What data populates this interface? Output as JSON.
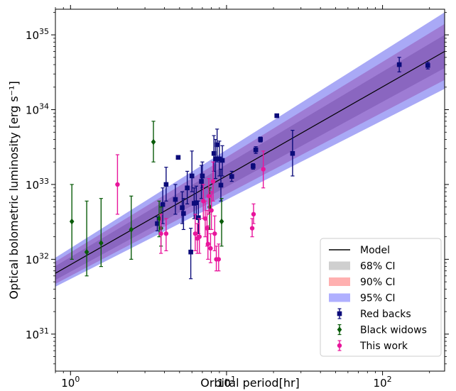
{
  "chart_data": {
    "type": "scatter",
    "title": "",
    "xlabel": "Orbital period[hr]",
    "ylabel": "Optical bolometric luminosity [erg s⁻¹]",
    "xscale": "log",
    "yscale": "log",
    "xlim": [
      0.8,
      250
    ],
    "ylim": [
      3.2e+30,
      2.2e+35
    ],
    "xticks": [
      {
        "value": 1,
        "base": "10",
        "exp": "0"
      },
      {
        "value": 10,
        "base": "10",
        "exp": "1"
      },
      {
        "value": 100,
        "base": "10",
        "exp": "2"
      }
    ],
    "yticks": [
      {
        "value": 1e+31,
        "base": "10",
        "exp": "31"
      },
      {
        "value": 1e+32,
        "base": "10",
        "exp": "32"
      },
      {
        "value": 1e+33,
        "base": "10",
        "exp": "33"
      },
      {
        "value": 1e+34,
        "base": "10",
        "exp": "34"
      },
      {
        "value": 1e+35,
        "base": "10",
        "exp": "35"
      }
    ],
    "model": {
      "name": "Model",
      "color": "#000000",
      "points": [
        [
          0.8,
          6.5e+31
        ],
        [
          250,
          6e+34
        ]
      ]
    },
    "confidence_bands": [
      {
        "name": "95% CI",
        "legend_color": "#b0b0ff",
        "color": "#a9a9f6",
        "lower": [
          [
            0.8,
            4.3e+31
          ],
          [
            250,
            1.9e+34
          ]
        ],
        "upper": [
          [
            0.8,
            1.05e+32
          ],
          [
            250,
            2e+35
          ]
        ]
      },
      {
        "name": "90% CI",
        "legend_color": "#ffb0b0",
        "color": "#9e7cd4",
        "lower": [
          [
            0.8,
            4.7e+31
          ],
          [
            250,
            2.5e+34
          ]
        ],
        "upper": [
          [
            0.8,
            9.3e+31
          ],
          [
            250,
            1.4e+35
          ]
        ]
      },
      {
        "name": "68% CI",
        "legend_color": "#cfcfcf",
        "color": "#8a66c0",
        "lower": [
          [
            0.8,
            5.3e+31
          ],
          [
            250,
            3.6e+34
          ]
        ],
        "upper": [
          [
            0.8,
            8.1e+31
          ],
          [
            250,
            1e+35
          ]
        ]
      }
    ],
    "series": [
      {
        "name": "Red backs",
        "marker": "square",
        "color": "#0b0b7a",
        "points": [
          [
            3.6,
            3e+32,
            2.4e+32,
            3.7e+32
          ],
          [
            3.9,
            5.4e+32,
            3e+32,
            9e+32
          ],
          [
            4.1,
            1e+33,
            6e+32,
            1.7e+33
          ],
          [
            4.7,
            6.3e+32,
            4e+32,
            1e+33
          ],
          [
            4.9,
            2.3e+33,
            2.2e+33,
            2.4e+33
          ],
          [
            5.2,
            4.9e+32,
            3e+32,
            8e+32
          ],
          [
            5.3,
            4.1e+32,
            2.5e+32,
            6.5e+32
          ],
          [
            5.6,
            9e+32,
            5.5e+32,
            1.5e+33
          ],
          [
            5.9,
            1.25e+32,
            5.5e+31,
            2.6e+32
          ],
          [
            6.0,
            1.3e+33,
            8e+32,
            2.8e+33
          ],
          [
            6.2,
            5.6e+32,
            3.5e+32,
            9e+32
          ],
          [
            6.4,
            5.7e+32,
            3.5e+32,
            9.5e+32
          ],
          [
            6.6,
            3.6e+32,
            2.2e+32,
            6e+32
          ],
          [
            6.9,
            1.1e+33,
            6.5e+32,
            1.8e+33
          ],
          [
            7.0,
            1.3e+33,
            9e+32,
            2e+33
          ],
          [
            8.3,
            2.6e+33,
            1.5e+33,
            4.5e+33
          ],
          [
            8.5,
            2.2e+33,
            1.2e+33,
            4e+33
          ],
          [
            8.7,
            3.4e+33,
            2e+33,
            5.5e+33
          ],
          [
            9.0,
            2.2e+33,
            1.3e+33,
            3.8e+33
          ],
          [
            9.2,
            9.8e+32,
            6e+32,
            1.6e+33
          ],
          [
            9.4,
            2.1e+33,
            1.3e+33,
            3.3e+33
          ],
          [
            10.8,
            1.28e+33,
            1.1e+33,
            1.5e+33
          ],
          [
            14.8,
            1.75e+33,
            1.6e+33,
            1.9e+33
          ],
          [
            15.4,
            2.9e+33,
            2.6e+33,
            3.2e+33
          ],
          [
            16.5,
            4e+33,
            3.7e+33,
            4.3e+33
          ],
          [
            21.0,
            8.3e+33,
            7.9e+33,
            8.7e+33
          ],
          [
            26.5,
            2.6e+33,
            1.3e+33,
            5.3e+33
          ],
          [
            128,
            4e+34,
            3.2e+34,
            5e+34
          ],
          [
            195,
            3.9e+34,
            3.5e+34,
            4.3e+34
          ]
        ]
      },
      {
        "name": "Black widows",
        "marker": "diamond",
        "color": "#0a5c0a",
        "points": [
          [
            1.02,
            3.2e+32,
            1e+32,
            1e+33
          ],
          [
            1.27,
            1.25e+32,
            6e+31,
            6e+32
          ],
          [
            1.57,
            1.65e+32,
            8e+31,
            6.5e+32
          ],
          [
            2.45,
            2.5e+32,
            1e+32,
            7e+32
          ],
          [
            3.4,
            3.7e+33,
            2e+33,
            7e+33
          ],
          [
            3.7,
            3.5e+32,
            2e+32,
            6e+32
          ],
          [
            3.8,
            2.6e+32,
            1.5e+32,
            5e+32
          ],
          [
            7.8,
            5e+32,
            2.5e+32,
            9e+32
          ],
          [
            9.3,
            3.2e+32,
            1.5e+32,
            6.5e+32
          ]
        ]
      },
      {
        "name": "This work",
        "marker": "circle",
        "color": "#e8159b",
        "points": [
          [
            2.0,
            1e+33,
            4e+32,
            2.5e+33
          ],
          [
            3.8,
            2.2e+32,
            1.2e+32,
            4e+32
          ],
          [
            4.1,
            2.2e+32,
            1.3e+32,
            3.5e+32
          ],
          [
            6.3,
            2.2e+32,
            1.3e+32,
            4e+32
          ],
          [
            6.5,
            1.9e+32,
            1.2e+32,
            3e+32
          ],
          [
            6.7,
            2e+32,
            1.2e+32,
            3.5e+32
          ],
          [
            7.1,
            6e+32,
            3.5e+32,
            1e+33
          ],
          [
            7.3,
            3.5e+32,
            2e+32,
            6e+32
          ],
          [
            7.5,
            2.6e+32,
            1.5e+32,
            4.5e+32
          ],
          [
            7.6,
            1.6e+32,
            1e+32,
            2.8e+32
          ],
          [
            7.7,
            7e+32,
            4e+32,
            1.2e+33
          ],
          [
            7.9,
            1.4e+32,
            9e+31,
            2.2e+32
          ],
          [
            8.0,
            4.5e+32,
            2.5e+32,
            8e+32
          ],
          [
            8.2,
            1.1e+33,
            6e+32,
            2e+33
          ],
          [
            8.4,
            2.2e+32,
            1.3e+32,
            3.8e+32
          ],
          [
            8.6,
            1e+32,
            7e+31,
            1.5e+32
          ],
          [
            8.9,
            1e+32,
            7e+31,
            1.6e+32
          ],
          [
            14.6,
            2.6e+32,
            2e+32,
            3.5e+32
          ],
          [
            14.9,
            4e+32,
            3e+32,
            5.5e+32
          ],
          [
            17.2,
            1.6e+33,
            9e+32,
            2.8e+33
          ]
        ]
      }
    ],
    "legend_position": "lower-right",
    "grid": false
  }
}
